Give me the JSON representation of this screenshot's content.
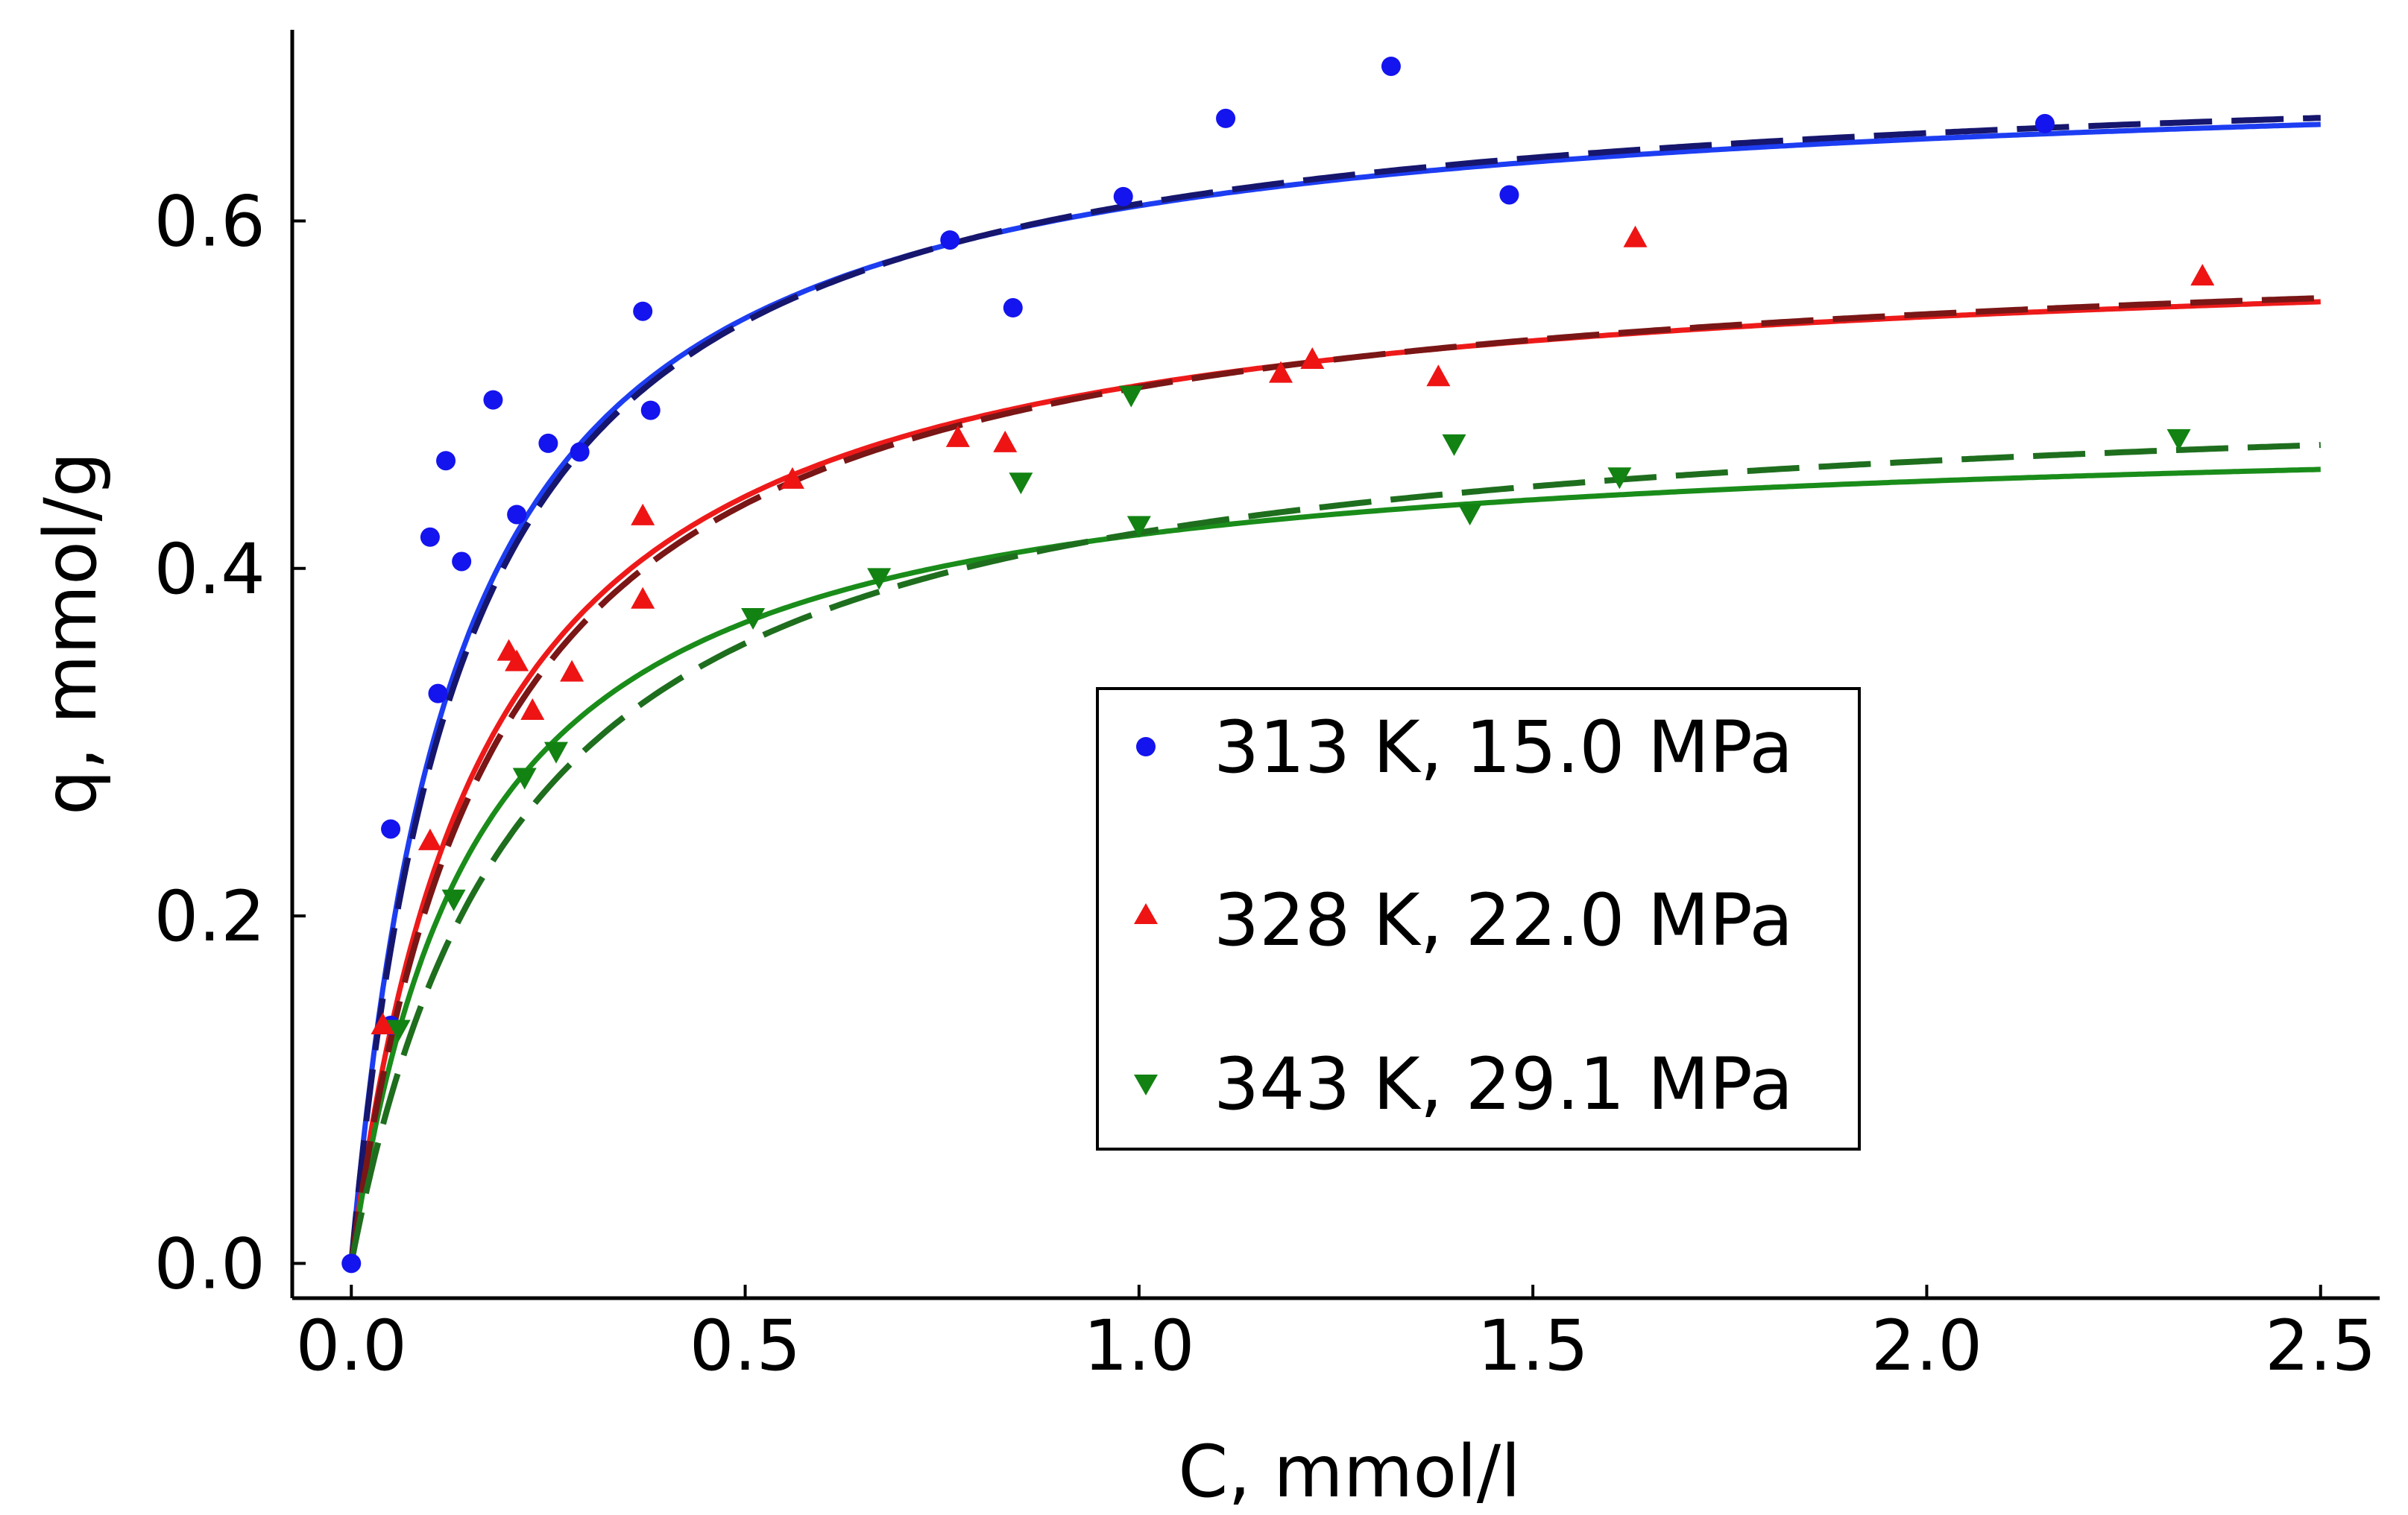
{
  "chart_data": {
    "type": "scatter",
    "title": "",
    "xlabel": "C, mmol/l",
    "ylabel": "q, mmol/g",
    "xlim": [
      -0.075,
      2.575
    ],
    "ylim": [
      -0.02,
      0.71
    ],
    "xticks": [
      0.0,
      0.5,
      1.0,
      1.5,
      2.0,
      2.5
    ],
    "xtick_labels": [
      "0.0",
      "0.5",
      "1.0",
      "1.5",
      "2.0",
      "2.5"
    ],
    "yticks": [
      0.0,
      0.2,
      0.4,
      0.6
    ],
    "ytick_labels": [
      "0.0",
      "0.2",
      "0.4",
      "0.6"
    ],
    "grid": false,
    "legend_position": "center-right",
    "series": [
      {
        "name": "313 K, 15.0 MPa",
        "marker": "circle",
        "color": "#1414ee",
        "x": [
          0.0,
          0.05,
          0.05,
          0.1,
          0.11,
          0.12,
          0.14,
          0.18,
          0.21,
          0.25,
          0.29,
          0.37,
          0.38,
          0.76,
          0.84,
          0.98,
          1.11,
          1.32,
          1.47,
          2.15
        ],
        "y": [
          0.0,
          0.137,
          0.25,
          0.418,
          0.328,
          0.462,
          0.404,
          0.497,
          0.431,
          0.472,
          0.467,
          0.548,
          0.491,
          0.589,
          0.55,
          0.614,
          0.659,
          0.689,
          0.615,
          0.656
        ],
        "fit_solid": {
          "qmax": 0.691,
          "K": 7.4,
          "color": "#1d3df2"
        },
        "fit_dashed": {
          "qmax": 0.697,
          "K": 7.0,
          "color": "#16166e"
        }
      },
      {
        "name": "328 K, 22.0 MPa",
        "marker": "triangle-up",
        "color": "#ee1414",
        "x": [
          0.04,
          0.1,
          0.2,
          0.21,
          0.23,
          0.28,
          0.37,
          0.37,
          0.56,
          0.77,
          0.83,
          1.18,
          1.22,
          1.38,
          1.63,
          2.35
        ],
        "y": [
          0.137,
          0.243,
          0.352,
          0.346,
          0.318,
          0.34,
          0.382,
          0.43,
          0.451,
          0.475,
          0.472,
          0.512,
          0.52,
          0.51,
          0.59,
          0.568
        ],
        "fit_solid": {
          "qmax": 0.591,
          "K": 5.9,
          "color": "#ee1a1a"
        },
        "fit_dashed": {
          "qmax": 0.596,
          "K": 5.5,
          "color": "#7a1616"
        }
      },
      {
        "name": "343 K, 29.1 MPa",
        "marker": "triangle-down",
        "color": "#128212",
        "x": [
          0.06,
          0.13,
          0.22,
          0.26,
          0.51,
          0.67,
          0.85,
          0.99,
          1.0,
          1.4,
          1.42,
          1.61,
          2.32
        ],
        "y": [
          0.135,
          0.21,
          0.28,
          0.295,
          0.372,
          0.395,
          0.45,
          0.5,
          0.425,
          0.472,
          0.432,
          0.453,
          0.475
        ],
        "fit_solid": {
          "qmax": 0.486,
          "K": 6.3,
          "color": "#1a8c1a"
        },
        "fit_dashed": {
          "qmax": 0.512,
          "K": 4.6,
          "color": "#1e6e1e"
        }
      }
    ]
  }
}
